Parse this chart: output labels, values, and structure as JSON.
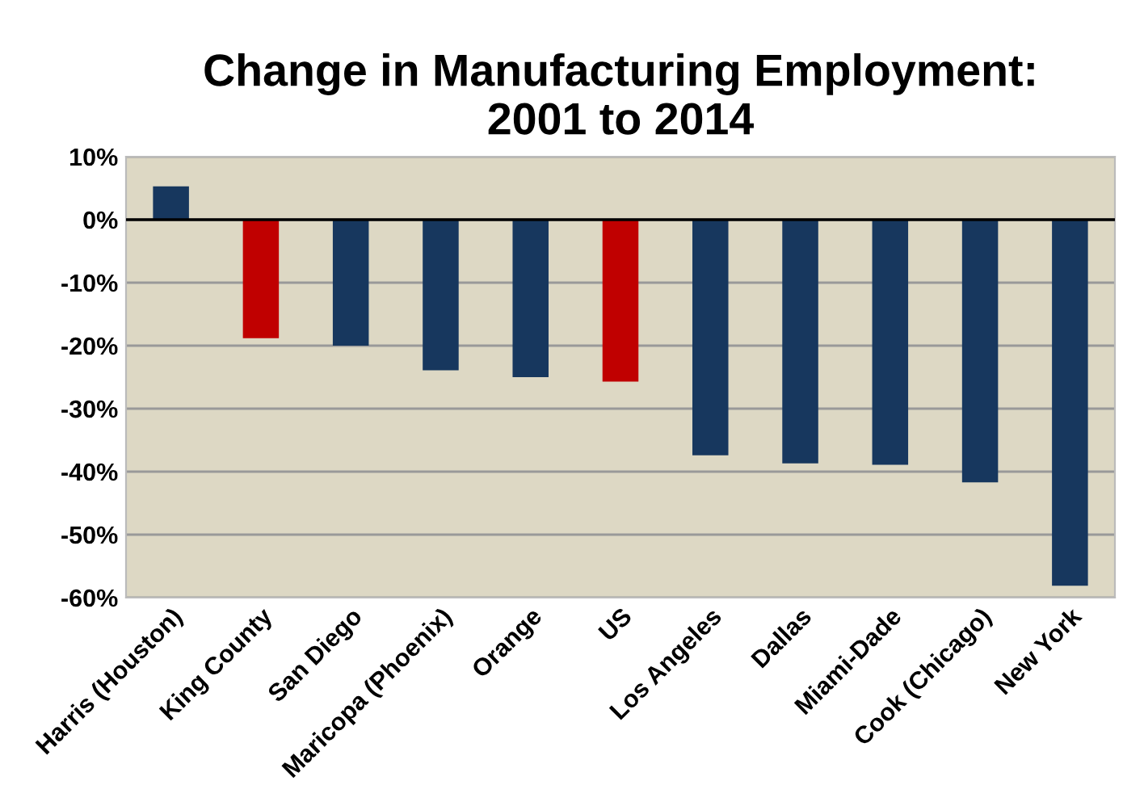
{
  "chart_data": {
    "type": "bar",
    "title": "Change in Manufacturing Employment:\n2001 to 2014",
    "categories": [
      "Harris (Houston)",
      "King County",
      "San Diego",
      "Maricopa (Phoenix)",
      "Orange",
      "US",
      "Los Angeles",
      "Dallas",
      "Miami-Dade",
      "Cook (Chicago)",
      "New York"
    ],
    "values": [
      5.3,
      -18.8,
      -20,
      -23.9,
      -25,
      -25.7,
      -37.4,
      -38.7,
      -38.9,
      -41.7,
      -58.1
    ],
    "colors": [
      "#17375e",
      "#c00000",
      "#17375e",
      "#17375e",
      "#17375e",
      "#c00000",
      "#17375e",
      "#17375e",
      "#17375e",
      "#17375e",
      "#17375e"
    ],
    "ylim": [
      -60,
      10
    ],
    "yticks": [
      {
        "value": 10,
        "label": "10%"
      },
      {
        "value": 0,
        "label": "0%"
      },
      {
        "value": -10,
        "label": "-10%"
      },
      {
        "value": -20,
        "label": "-20%"
      },
      {
        "value": -30,
        "label": "-30%"
      },
      {
        "value": -40,
        "label": "-40%"
      },
      {
        "value": -50,
        "label": "-50%"
      },
      {
        "value": -60,
        "label": "-60%"
      }
    ],
    "grid": "y"
  }
}
